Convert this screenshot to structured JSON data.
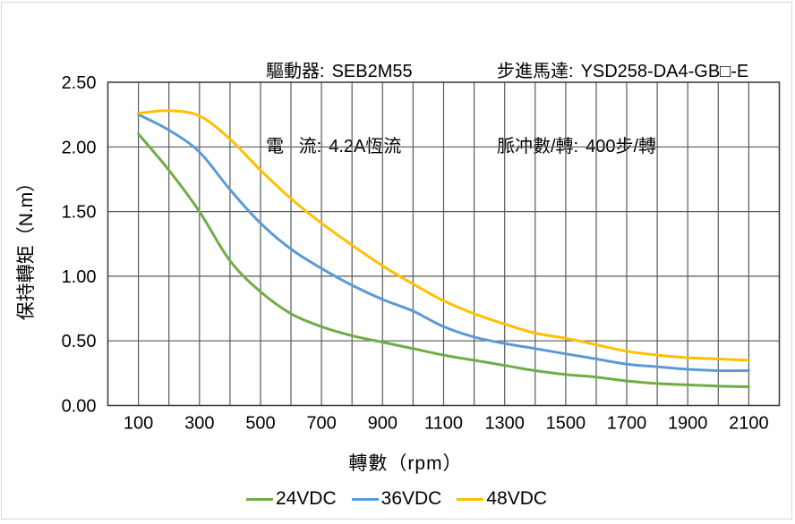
{
  "header": {
    "items": [
      {
        "label": "驅動器:",
        "value": "SEB2M55"
      },
      {
        "label": "電   流:",
        "value": "4.2A恆流"
      },
      {
        "label": "步進馬達:",
        "value": "YSD258-DA4-GB□-E"
      },
      {
        "label": "脈冲數/轉:",
        "value": "400步/轉"
      }
    ]
  },
  "chart_data": {
    "type": "line",
    "title": "",
    "xlabel": "轉數（rpm）",
    "ylabel": "保持轉矩（N.m）",
    "x": [
      100,
      200,
      300,
      400,
      500,
      600,
      700,
      800,
      900,
      1000,
      1100,
      1200,
      1300,
      1400,
      1500,
      1600,
      1700,
      1800,
      1900,
      2000,
      2100
    ],
    "series": [
      {
        "name": "24VDC",
        "color": "#70AD47",
        "values": [
          2.1,
          1.82,
          1.5,
          1.12,
          0.88,
          0.71,
          0.61,
          0.54,
          0.49,
          0.44,
          0.39,
          0.35,
          0.31,
          0.27,
          0.24,
          0.22,
          0.19,
          0.17,
          0.16,
          0.15,
          0.145
        ]
      },
      {
        "name": "36VDC",
        "color": "#5B9BD5",
        "values": [
          2.25,
          2.13,
          1.96,
          1.67,
          1.41,
          1.21,
          1.06,
          0.93,
          0.82,
          0.73,
          0.61,
          0.53,
          0.48,
          0.44,
          0.4,
          0.36,
          0.32,
          0.3,
          0.28,
          0.27,
          0.27
        ]
      },
      {
        "name": "48VDC",
        "color": "#FFC000",
        "values": [
          2.26,
          2.28,
          2.24,
          2.06,
          1.82,
          1.6,
          1.41,
          1.24,
          1.08,
          0.94,
          0.81,
          0.71,
          0.63,
          0.56,
          0.52,
          0.47,
          0.42,
          0.39,
          0.37,
          0.36,
          0.35
        ]
      }
    ],
    "x_ticks": [
      100,
      300,
      500,
      700,
      900,
      1100,
      1300,
      1500,
      1700,
      1900,
      2100
    ],
    "y_ticks": [
      "0.00",
      "0.50",
      "1.00",
      "1.50",
      "2.00",
      "2.50"
    ],
    "xlim": [
      0,
      2200
    ],
    "ylim": [
      0,
      2.5
    ],
    "grid": true,
    "grid_color": "#595959",
    "border_color": "#404040",
    "legend_position": "bottom"
  }
}
